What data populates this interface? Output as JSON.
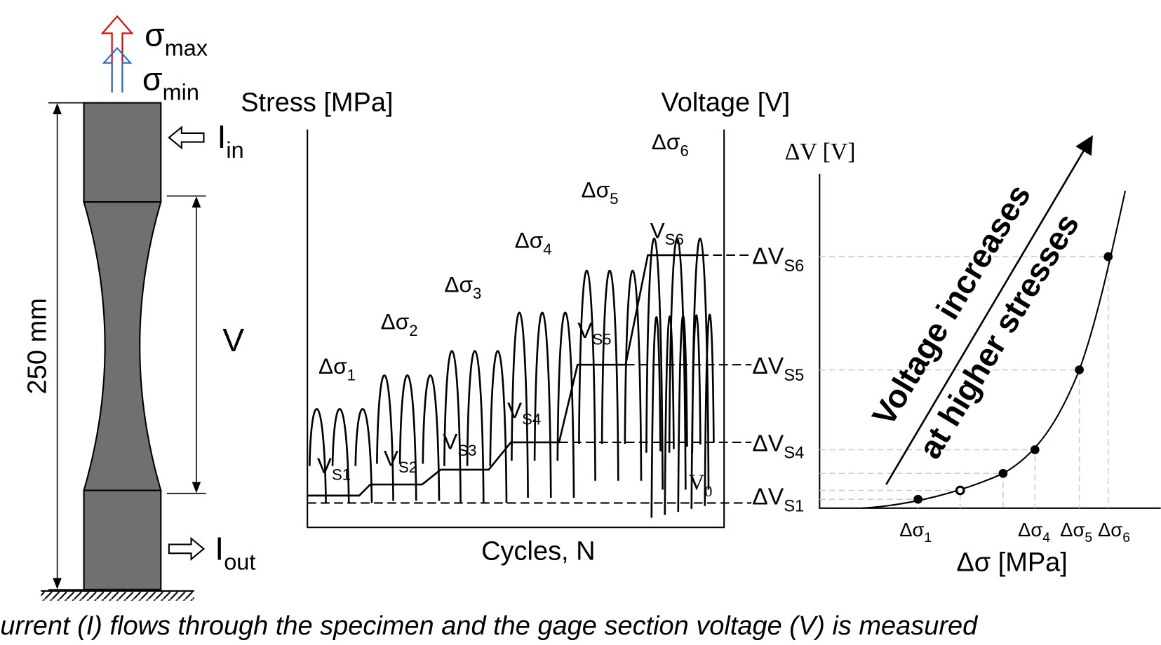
{
  "specimen": {
    "load_max": {
      "main": "σ",
      "sub": "max"
    },
    "load_min": {
      "main": "σ",
      "sub": "min"
    },
    "current_in": {
      "main": "I",
      "sub": "in"
    },
    "current_out": {
      "main": "I",
      "sub": "out"
    },
    "voltage": "V",
    "length": "250 mm"
  },
  "signal_plot": {
    "left_axis": "Stress [MPa]",
    "right_axis": "Voltage [V]",
    "x_axis": "Cycles, N",
    "stress_blocks": [
      {
        "main": "Δσ",
        "sub": "1"
      },
      {
        "main": "Δσ",
        "sub": "2"
      },
      {
        "main": "Δσ",
        "sub": "3"
      },
      {
        "main": "Δσ",
        "sub": "4"
      },
      {
        "main": "Δσ",
        "sub": "5"
      },
      {
        "main": "Δσ",
        "sub": "6"
      }
    ],
    "voltage_steps": [
      {
        "main": "V",
        "sub": "S1"
      },
      {
        "main": "V",
        "sub": "S2"
      },
      {
        "main": "V",
        "sub": "S3"
      },
      {
        "main": "V",
        "sub": "S4"
      },
      {
        "main": "V",
        "sub": "S5"
      },
      {
        "main": "V",
        "sub": "S6"
      }
    ],
    "baseline": {
      "main": "V",
      "sub": "0"
    },
    "step_levels": [
      {
        "main": "ΔV",
        "sub": "S6"
      },
      {
        "main": "ΔV",
        "sub": "S5"
      },
      {
        "main": "ΔV",
        "sub": "S4"
      },
      {
        "main": "ΔV",
        "sub": "S1"
      }
    ]
  },
  "result_plot": {
    "y_axis": "ΔV [V]",
    "x_axis": "Δσ [MPa]",
    "x_labels": [
      {
        "main": "Δσ",
        "sub": "1"
      },
      {
        "main": "Δσ",
        "sub": "4"
      },
      {
        "main": "Δσ",
        "sub": "5"
      },
      {
        "main": "Δσ",
        "sub": "6"
      }
    ],
    "annotation": [
      "Voltage increases",
      "at higher stresses"
    ]
  },
  "caption": "urrent (I) flows through the specimen and the gage section voltage (V) is measured"
}
